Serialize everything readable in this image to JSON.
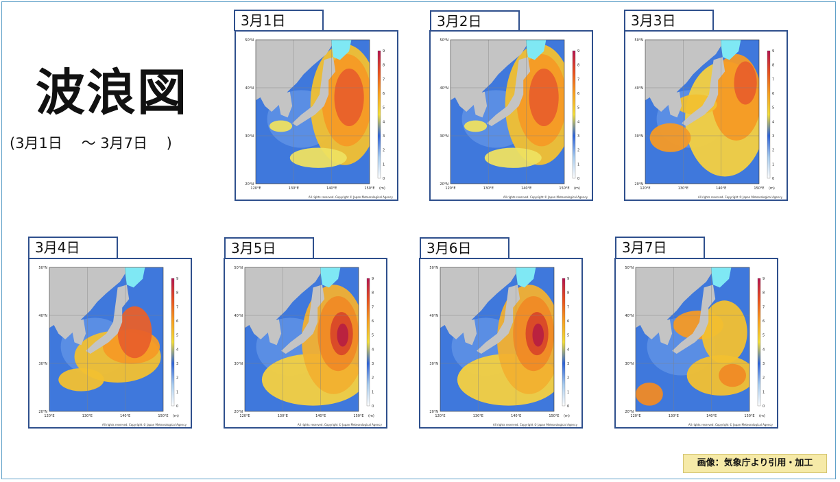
{
  "page": {
    "title": "波浪図",
    "range": "(3月1日　 ～ 3月7日　 )",
    "credit": "画像：気象庁より引用・加工"
  },
  "map_labels": {
    "lat_labels": [
      "50°N",
      "40°N",
      "30°N",
      "20°N"
    ],
    "lon_labels": [
      "120°E",
      "130°E",
      "140°E",
      "150°E"
    ],
    "scale_ticks": [
      "9",
      "8",
      "7",
      "6",
      "5",
      "4",
      "3",
      "2",
      "1",
      "0"
    ],
    "unit": "(m)",
    "copyright": "All rights reserved. Copyright © Japan Meteorological Agency"
  },
  "colors": {
    "land": "#c4c4c4",
    "ice": "#7fe8f4",
    "frame": "#2e4f8c",
    "colorbar": [
      "#ffffff",
      "#a9cdf0",
      "#2d63d8",
      "#f2dd3a",
      "#f8a020",
      "#e85020",
      "#b41450"
    ]
  },
  "charts": [
    {
      "date": "3月1日",
      "pattern": "calm-west-high-east"
    },
    {
      "date": "3月2日",
      "pattern": "calm-west-high-east"
    },
    {
      "date": "3月3日",
      "pattern": "high-japan-sea-and-east"
    },
    {
      "date": "3月4日",
      "pattern": "high-south-belt"
    },
    {
      "date": "3月5日",
      "pattern": "storm-east"
    },
    {
      "date": "3月6日",
      "pattern": "storm-east"
    },
    {
      "date": "3月7日",
      "pattern": "high-japan-sea-and-southeast"
    }
  ]
}
